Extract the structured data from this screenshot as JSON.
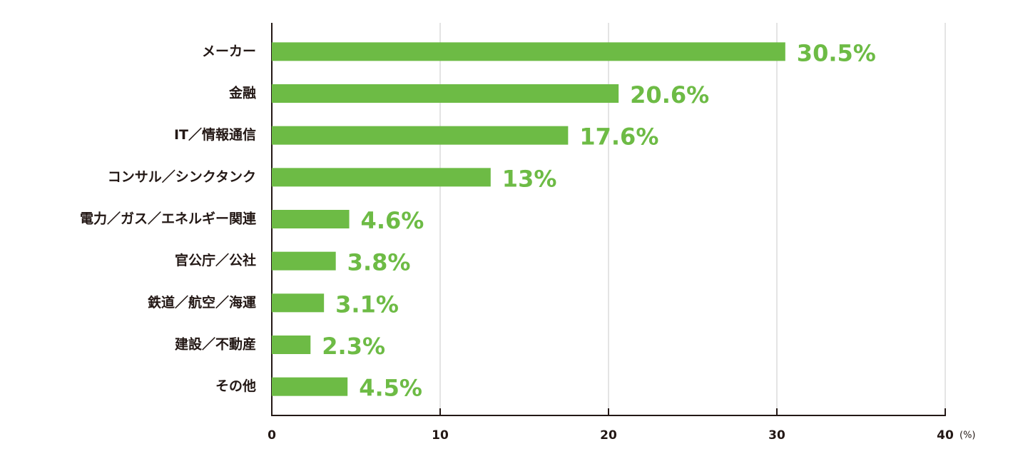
{
  "chart_data": {
    "type": "bar",
    "orientation": "horizontal",
    "categories": [
      "メーカー",
      "金融",
      "IT／情報通信",
      "コンサル／シンクタンク",
      "電力／ガス／エネルギー関連",
      "官公庁／公社",
      "鉄道／航空／海運",
      "建設／不動産",
      "その他"
    ],
    "values": [
      30.5,
      20.6,
      17.6,
      13,
      4.6,
      3.8,
      3.1,
      2.3,
      4.5
    ],
    "value_labels": [
      "30.5%",
      "20.6%",
      "17.6%",
      "13%",
      "4.6%",
      "3.8%",
      "3.1%",
      "2.3%",
      "4.5%"
    ],
    "color": "#6dbb45",
    "xlim": [
      0,
      40
    ],
    "xticks": [
      0,
      10,
      20,
      30,
      40
    ],
    "xlabel": "(%)",
    "grid": true
  }
}
